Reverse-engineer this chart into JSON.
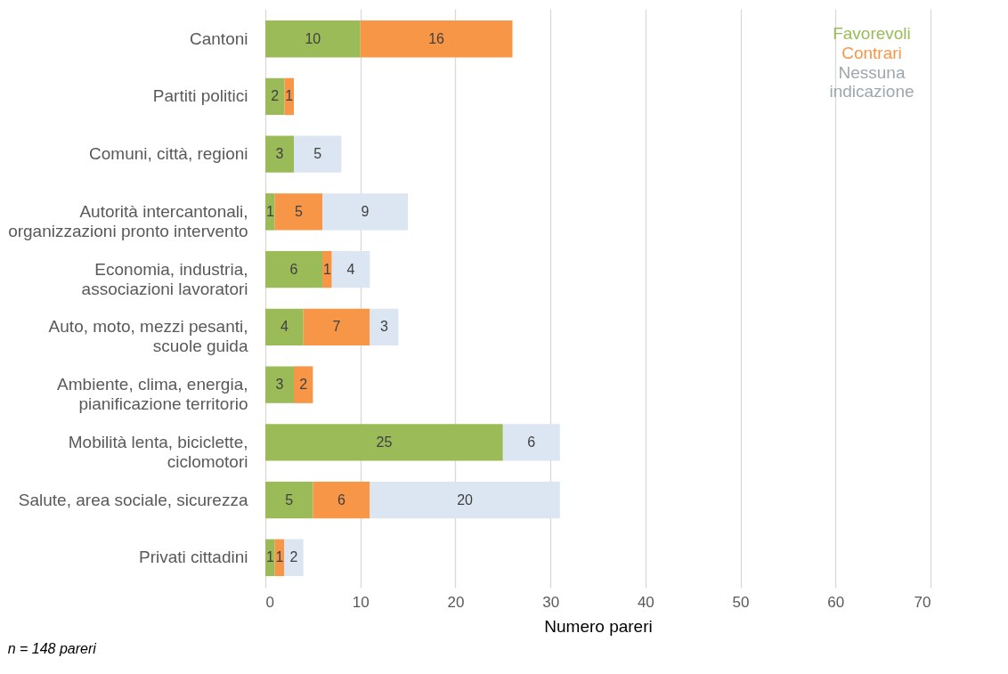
{
  "chart_data": {
    "type": "bar",
    "orientation": "horizontal",
    "stacked": true,
    "data_labels": true,
    "grid": "x",
    "legend": "top right",
    "xlabel": "Numero pareri",
    "xlim": [
      0,
      70
    ],
    "xticks": [
      0,
      10,
      20,
      30,
      40,
      50,
      60,
      70
    ],
    "categories": [
      "Cantoni",
      "Partiti politici",
      "Comuni, città, regioni",
      "Autorità intercantonali, organizzazioni pronto intervento",
      "Economia, industria, associazioni lavoratori",
      "Auto, moto, mezzi pesanti, scuole guida",
      "Ambiente, clima, energia, pianificazione territorio",
      "Mobilità lenta, biciclette, ciclomotori",
      "Salute, area sociale, sicurezza",
      "Privati cittadini"
    ],
    "series": [
      {
        "name": "Favorevoli",
        "color": "#9bbb59",
        "values": [
          10,
          2,
          3,
          1,
          6,
          4,
          3,
          25,
          5,
          1
        ]
      },
      {
        "name": "Contrari",
        "color": "#f79646",
        "values": [
          16,
          1,
          null,
          5,
          1,
          7,
          2,
          null,
          6,
          1
        ]
      },
      {
        "name": "Nessuna indicazione",
        "color": "#dce6f2",
        "values": [
          null,
          null,
          5,
          9,
          4,
          3,
          null,
          6,
          20,
          2
        ]
      }
    ],
    "annotations": [
      "n = 148 pareri"
    ]
  }
}
